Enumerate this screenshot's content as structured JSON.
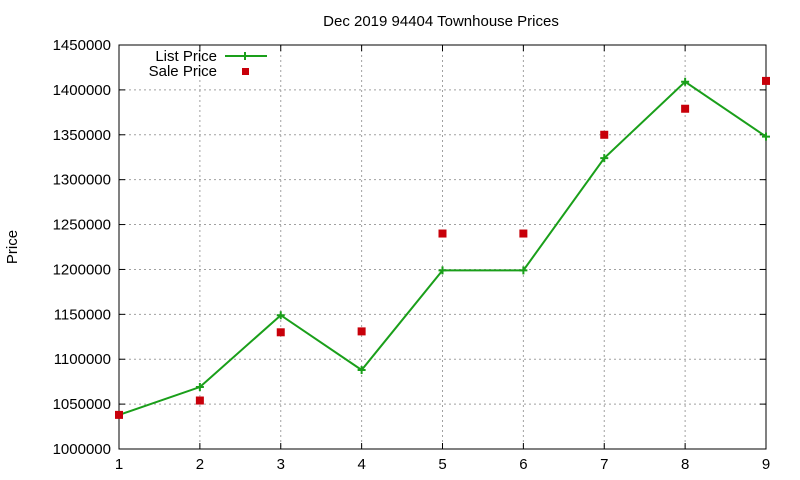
{
  "chart_data": {
    "type": "line",
    "title": "Dec 2019 94404 Townhouse Prices",
    "xlabel": "",
    "ylabel": "Price",
    "xlim": [
      1,
      9
    ],
    "ylim": [
      1000000,
      1450000
    ],
    "x_ticks": [
      1,
      2,
      3,
      4,
      5,
      6,
      7,
      8,
      9
    ],
    "y_ticks": [
      1000000,
      1050000,
      1100000,
      1150000,
      1200000,
      1250000,
      1300000,
      1350000,
      1400000,
      1450000
    ],
    "grid": true,
    "legend_position": "top-left",
    "series": [
      {
        "name": "List Price",
        "style": "line-points",
        "color": "#1a9f1a",
        "x": [
          1,
          2,
          3,
          4,
          5,
          6,
          7,
          8,
          9
        ],
        "y": [
          1038000,
          1069000,
          1149000,
          1088000,
          1199000,
          1199000,
          1324000,
          1409000,
          1348000
        ]
      },
      {
        "name": "Sale Price",
        "style": "points",
        "color": "#c8000a",
        "x": [
          1,
          2,
          3,
          4,
          5,
          6,
          7,
          8,
          9
        ],
        "y": [
          1038000,
          1054000,
          1130000,
          1131000,
          1240000,
          1240000,
          1350000,
          1379000,
          1410000
        ]
      }
    ]
  }
}
